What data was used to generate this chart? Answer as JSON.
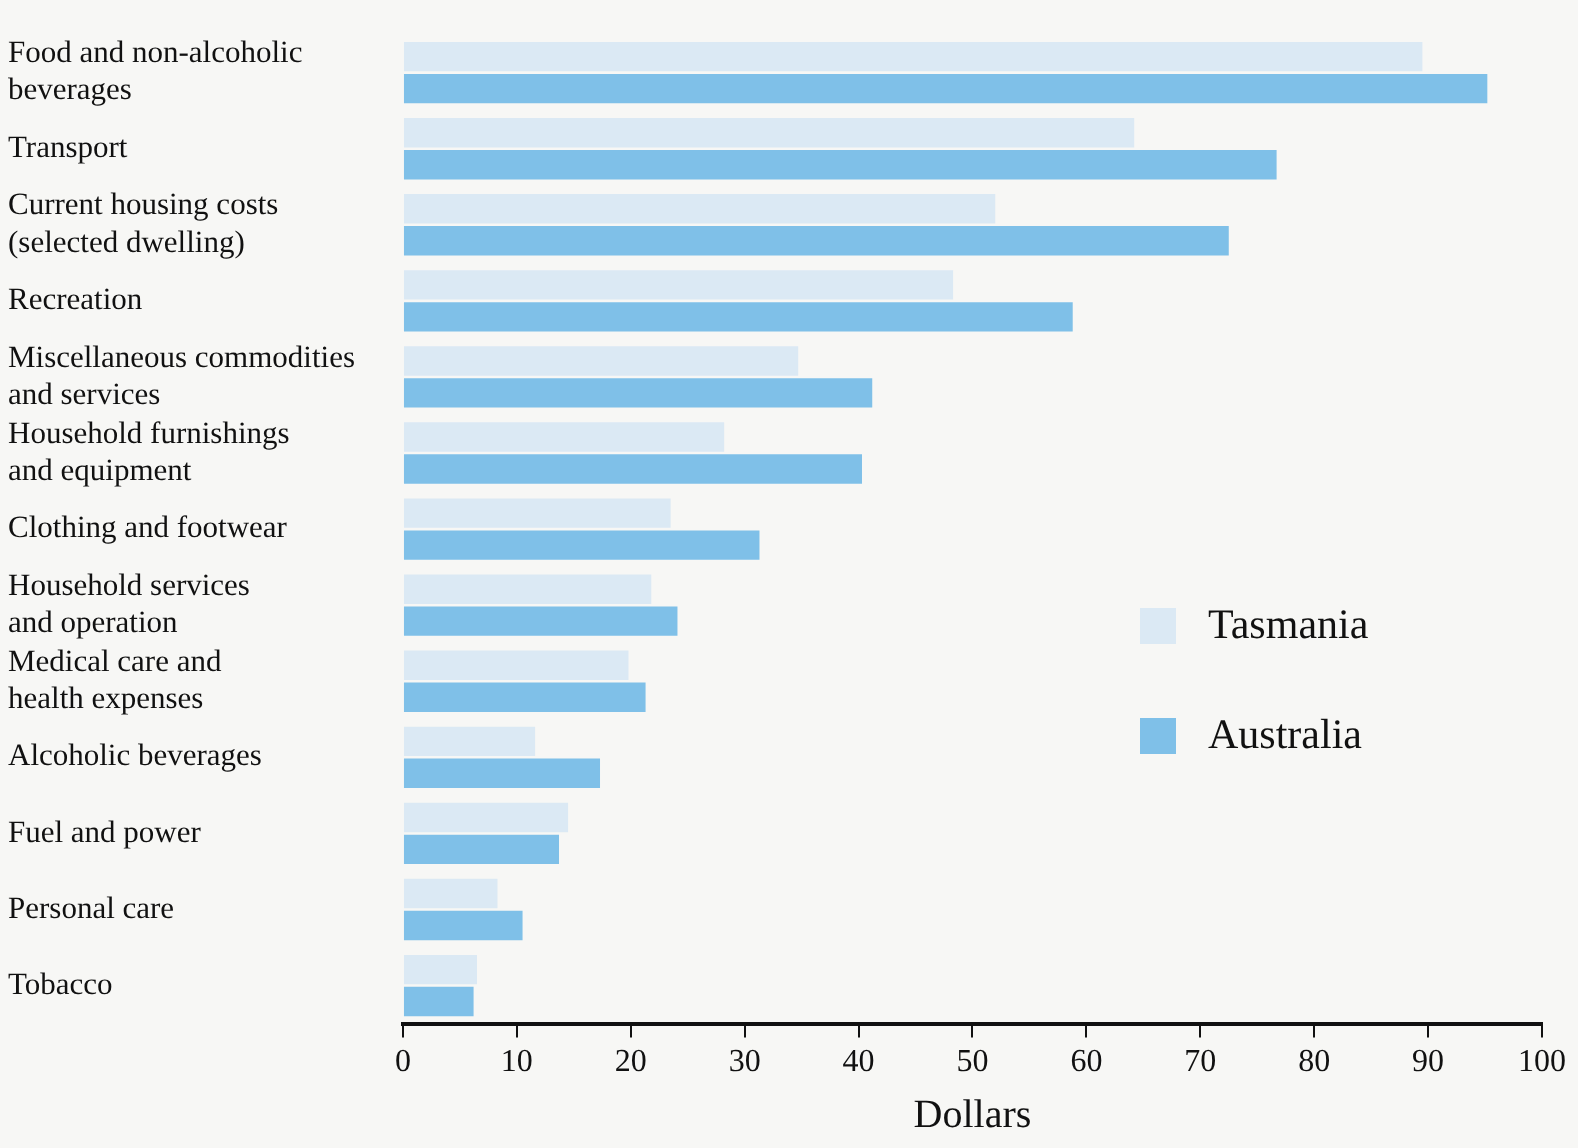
{
  "chart_data": {
    "type": "bar",
    "orientation": "horizontal",
    "xlabel": "Dollars",
    "categories": [
      "Food and non-alcoholic\nbeverages",
      "Transport",
      "Current housing costs\n(selected dwelling)",
      "Recreation",
      "Miscellaneous commodities\nand services",
      "Household furnishings\nand equipment",
      "Clothing and footwear",
      "Household services\nand operation",
      "Medical care and\nhealth expenses",
      "Alcoholic beverages",
      "Fuel and power",
      "Personal care",
      "Tobacco"
    ],
    "series": [
      {
        "name": "Tasmania",
        "color": "#dbe9f4",
        "values": [
          89.5,
          64.2,
          52,
          48.3,
          34.7,
          28.2,
          23.5,
          21.8,
          19.8,
          11.6,
          14.5,
          8.3,
          6.5
        ]
      },
      {
        "name": "Australia",
        "color": "#7fc0e8",
        "values": [
          95.2,
          76.7,
          72.5,
          58.8,
          41.2,
          40.3,
          31.3,
          24.1,
          21.3,
          17.3,
          13.7,
          10.5,
          6.2
        ]
      }
    ],
    "xlim": [
      0,
      100
    ],
    "xticks": [
      0,
      10,
      20,
      30,
      40,
      50,
      60,
      70,
      80,
      90,
      100
    ],
    "grid": false,
    "legend": "right"
  }
}
